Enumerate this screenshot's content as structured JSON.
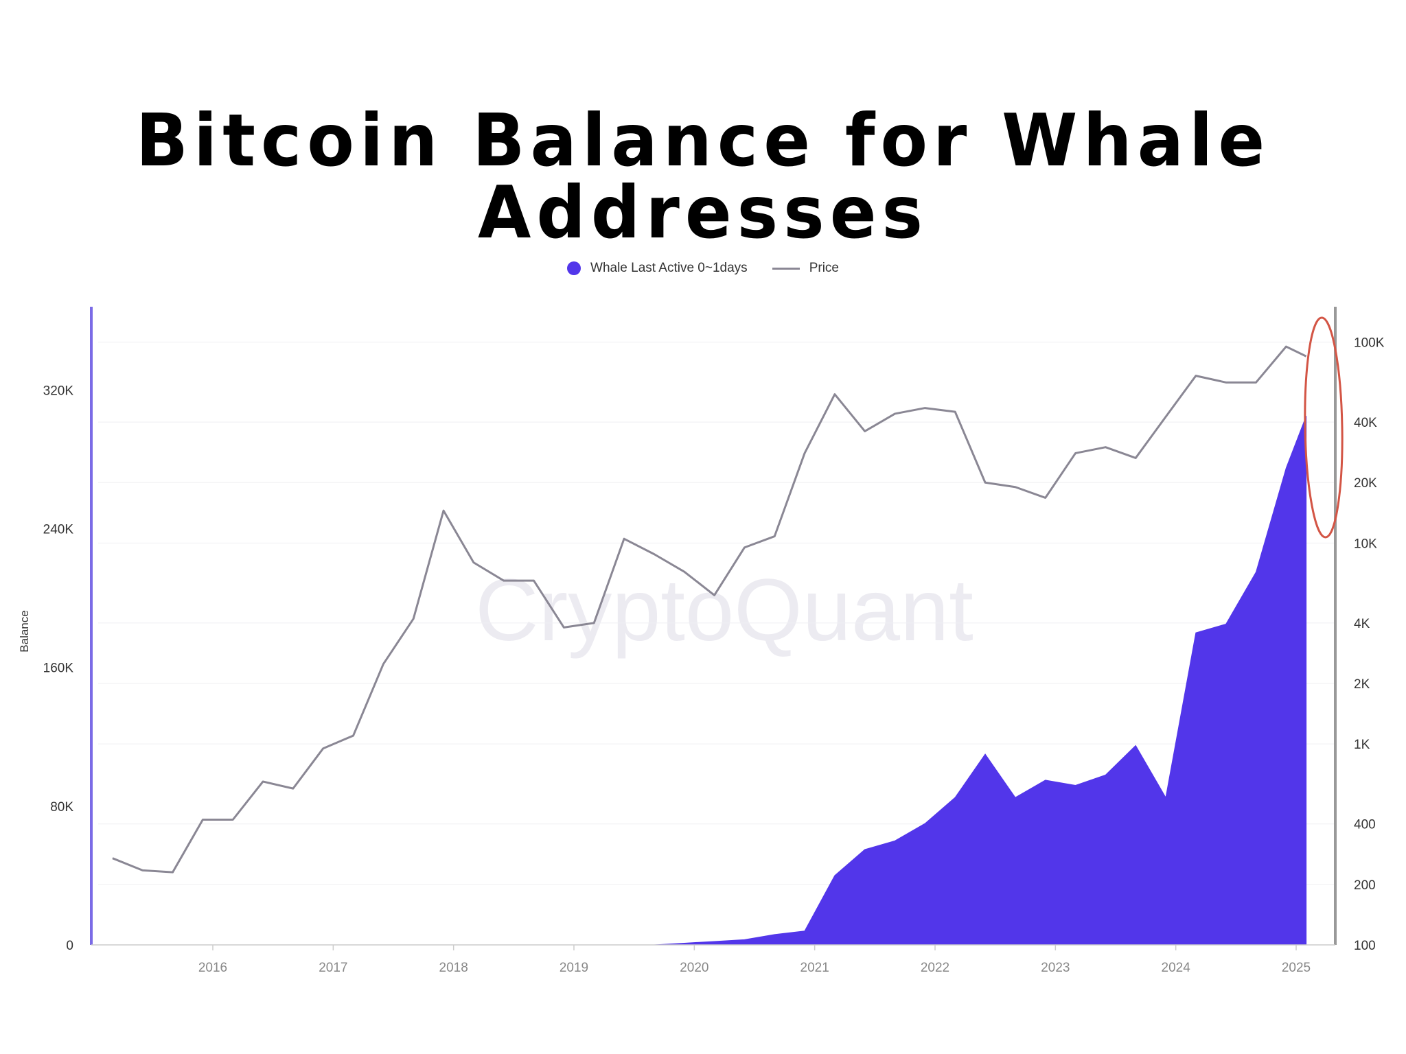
{
  "title": "Bitcoin Balance for Whale Addresses",
  "watermark": "CryptoQuant",
  "legend": {
    "items": [
      {
        "label": "Whale Last Active 0~1days",
        "color": "#5236ea"
      },
      {
        "label": "Price",
        "color": "#8a8794"
      }
    ]
  },
  "colors": {
    "balance": "#5236ea",
    "price": "#8a8794",
    "highlight": "#d35545",
    "left_axis": "#7b6be6",
    "right_axis": "#999999"
  },
  "chart_data": {
    "type": "area",
    "x_dates": [
      "2015-03",
      "2015-06",
      "2015-09",
      "2015-12",
      "2016-03",
      "2016-06",
      "2016-09",
      "2016-12",
      "2017-03",
      "2017-06",
      "2017-09",
      "2017-12",
      "2018-03",
      "2018-06",
      "2018-09",
      "2018-12",
      "2019-03",
      "2019-06",
      "2019-09",
      "2019-12",
      "2020-03",
      "2020-06",
      "2020-09",
      "2020-12",
      "2021-03",
      "2021-06",
      "2021-09",
      "2021-12",
      "2022-03",
      "2022-06",
      "2022-09",
      "2022-12",
      "2023-03",
      "2023-06",
      "2023-09",
      "2023-12",
      "2024-03",
      "2024-06",
      "2024-09",
      "2024-12",
      "2025-02"
    ],
    "series": [
      {
        "name": "Whale Last Active 0~1days",
        "axis": "left",
        "values": [
          0,
          0,
          0,
          0,
          0,
          0,
          0,
          0,
          0,
          0,
          0,
          0,
          0,
          0,
          0,
          0,
          0,
          0,
          0,
          1000,
          2000,
          3000,
          6000,
          8000,
          40000,
          55000,
          60000,
          70000,
          85000,
          110000,
          85000,
          95000,
          92000,
          98000,
          115000,
          85000,
          180000,
          185000,
          215000,
          275000,
          305000
        ]
      },
      {
        "name": "Price",
        "axis": "right",
        "values": [
          270,
          235,
          230,
          420,
          420,
          650,
          600,
          950,
          1100,
          2500,
          4200,
          14500,
          8000,
          6500,
          6500,
          3800,
          4000,
          10500,
          8800,
          7200,
          5500,
          9500,
          10800,
          28000,
          55000,
          36000,
          44000,
          47000,
          45000,
          20000,
          19000,
          16800,
          28000,
          30000,
          26500,
          42500,
          68000,
          63000,
          63000,
          95000,
          85000
        ]
      }
    ],
    "y_left": {
      "label": "Balance",
      "min": 0,
      "max": 368000,
      "ticks": [
        "0",
        "80K",
        "160K",
        "240K",
        "320K"
      ]
    },
    "y_right": {
      "scale": "log",
      "min": 100,
      "max": 150000,
      "ticks": [
        "100",
        "200",
        "400",
        "1K",
        "2K",
        "4K",
        "10K",
        "20K",
        "40K",
        "100K"
      ]
    },
    "x_ticks": [
      "2016",
      "2017",
      "2018",
      "2019",
      "2020",
      "2021",
      "2022",
      "2023",
      "2024",
      "2025"
    ],
    "grid": true,
    "legend_position": "top-center",
    "annotation": "red ellipse highlighting latest spike (early 2025)"
  }
}
